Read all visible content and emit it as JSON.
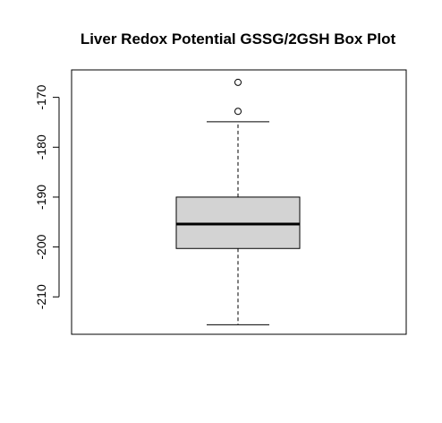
{
  "chart_data": {
    "type": "box",
    "title": "Liver Redox Potential GSSG/2GSH Box Plot",
    "xlabel": "",
    "ylabel": "",
    "ylim": [
      -217.5,
      -164.5
    ],
    "y_ticks": [
      -170,
      -180,
      -190,
      -200,
      -210
    ],
    "y_tick_labels": [
      "-170",
      "-180",
      "-190",
      "-200",
      "-210"
    ],
    "grid": false,
    "box": {
      "whisker_low": -215.6,
      "q1": -200.3,
      "median": -195.4,
      "q3": -190.0,
      "whisker_high": -174.9,
      "outliers": [
        -172.8,
        -167.0
      ]
    },
    "colors": {
      "box_fill": "#d3d3d3",
      "line": "#000000",
      "background": "#ffffff"
    }
  }
}
